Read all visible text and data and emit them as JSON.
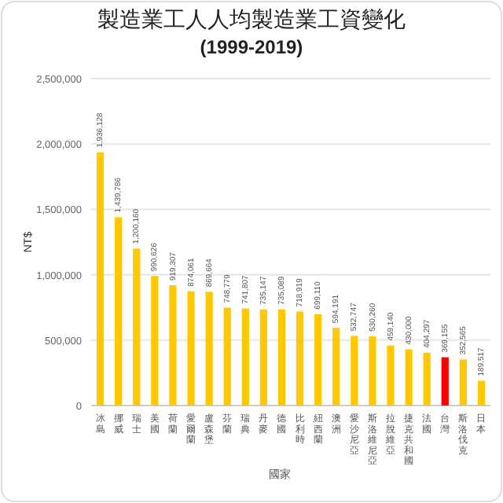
{
  "chart_data": {
    "type": "bar",
    "title": "製造業工人人均製造業工資變化",
    "subtitle": "(1999-2019)",
    "xlabel": "國家",
    "ylabel": "NT$",
    "categories": [
      "冰島",
      "挪威",
      "瑞士",
      "美國",
      "荷蘭",
      "愛爾蘭",
      "盧森堡",
      "芬蘭",
      "瑞典",
      "丹麥",
      "德國",
      "比利時",
      "紐西蘭",
      "澳洲",
      "愛沙尼亞",
      "斯洛維尼亞",
      "拉脫維亞",
      "捷克共和國",
      "法國",
      "台灣",
      "斯洛伐克",
      "日本"
    ],
    "values": [
      1936128,
      1439786,
      1200160,
      990626,
      919307,
      874061,
      869664,
      748779,
      741807,
      735147,
      735089,
      718919,
      699110,
      594191,
      532747,
      530260,
      459140,
      430000,
      404297,
      369155,
      352565,
      189517
    ],
    "colors": [
      "#ffc800",
      "#ffc800",
      "#ffc800",
      "#ffc800",
      "#ffc800",
      "#ffc800",
      "#ffc800",
      "#ffc800",
      "#ffc800",
      "#ffc800",
      "#ffc800",
      "#ffc800",
      "#ffc800",
      "#ffc800",
      "#ffc800",
      "#ffc800",
      "#ffc800",
      "#ffc800",
      "#ffc800",
      "#ff0000",
      "#ffc800",
      "#ffc800"
    ],
    "ylim": [
      0,
      2500000
    ],
    "yticks": [
      {
        "value": 0,
        "label": "0"
      },
      {
        "value": 500000,
        "label": "500,000"
      },
      {
        "value": 1000000,
        "label": "1,000,000"
      },
      {
        "value": 1500000,
        "label": "1,500,000"
      },
      {
        "value": 2000000,
        "label": "2,000,000"
      },
      {
        "value": 2500000,
        "label": "2,500,000"
      }
    ],
    "value_labels": [
      "1,936,128",
      "1,439,786",
      "1,200,160",
      "990,626",
      "919,307",
      "874,061",
      "869,664",
      "748,779",
      "741,807",
      "735,147",
      "735,089",
      "718,919",
      "699,110",
      "594,191",
      "532,747",
      "530,260",
      "459,140",
      "430,000",
      "404,297",
      "369,155",
      "352,565",
      "189,517"
    ],
    "grid": "y"
  }
}
